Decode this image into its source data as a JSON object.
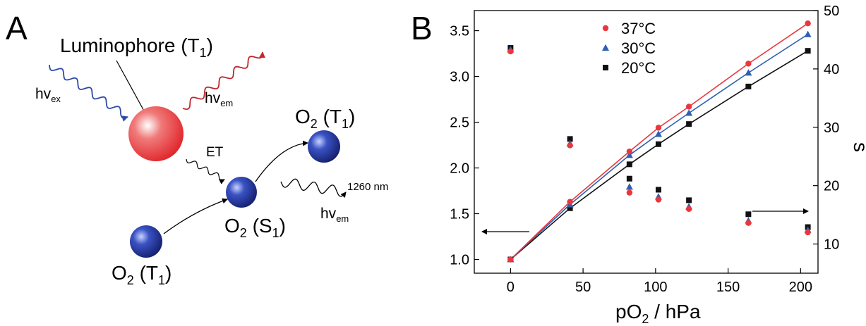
{
  "panel_a": {
    "label": "A",
    "luminophore_label": "Luminophore (T",
    "luminophore_sub": "1",
    "luminophore_close": ")",
    "hv": "hv",
    "ex_sub": "ex",
    "em_sub": "em",
    "et_label": "ET",
    "nm_label": "1260 nm",
    "o2": "O",
    "o2_sub": "2",
    "t1_open": " (T",
    "t1_sub": "1",
    "s1_open": " (S",
    "s1_sub": "1",
    "close": ")",
    "colors": {
      "luminophore": "#e0262b",
      "oxygen": "#1f2f99",
      "excitation_wave": "#2e4aa8",
      "emission_wave": "#c1272d"
    }
  },
  "panel_b": {
    "label": "B"
  },
  "chart_data": {
    "type": "scatter",
    "xlabel": "pO",
    "xlabel_sub": "2",
    "xlabel_suffix": " / hPa",
    "ylabel_right": "s",
    "xlim": [
      -25,
      212
    ],
    "ylim_left": [
      0.85,
      3.72
    ],
    "ylim_right": [
      5,
      50
    ],
    "x_ticks": [
      0,
      50,
      100,
      150,
      200
    ],
    "y_left_ticks": [
      "1.0",
      "1.5",
      "2.0",
      "2.5",
      "3.0",
      "3.5"
    ],
    "y_right_ticks": [
      10,
      20,
      30,
      40,
      50
    ],
    "legend_position": "top-center",
    "x": [
      0,
      41,
      82,
      102,
      123,
      164,
      205
    ],
    "series": [
      {
        "name": "37°C",
        "marker": "circle",
        "color": "#e8383d",
        "left_values": [
          1.0,
          1.63,
          2.18,
          2.44,
          2.67,
          3.14,
          3.58
        ],
        "right_values": [
          43.0,
          26.9,
          18.8,
          17.6,
          16.0,
          13.6,
          12.0
        ]
      },
      {
        "name": "30°C",
        "marker": "triangle",
        "color": "#2f5fb3",
        "left_values": [
          1.0,
          1.6,
          2.14,
          2.37,
          2.6,
          3.04,
          3.46
        ],
        "right_values": [
          43.3,
          27.2,
          19.8,
          18.1,
          16.4,
          14.0,
          12.4
        ]
      },
      {
        "name": "20°C",
        "marker": "square",
        "color": "#111111",
        "left_values": [
          1.0,
          1.56,
          2.04,
          2.26,
          2.48,
          2.89,
          3.28
        ],
        "right_values": [
          43.6,
          28.0,
          21.2,
          19.3,
          17.5,
          15.1,
          12.9
        ]
      }
    ]
  }
}
